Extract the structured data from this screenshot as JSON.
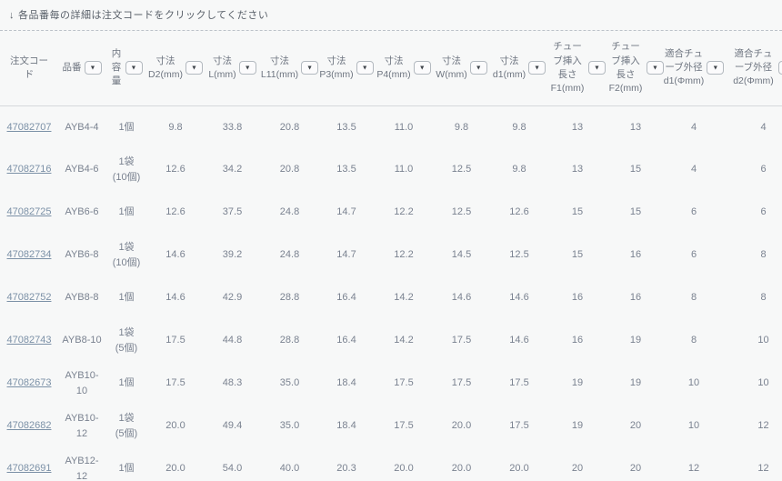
{
  "note": {
    "arrow": "↓",
    "text": "各品番毎の詳細は注文コードをクリックしてください"
  },
  "table": {
    "columns": [
      {
        "id": "order-code",
        "label": "注文コード",
        "filter": false
      },
      {
        "id": "part-number",
        "label": "品番",
        "filter": true
      },
      {
        "id": "quantity",
        "label": "内容量",
        "filter": true
      },
      {
        "id": "dim-d2",
        "label": "寸法\nD2(mm)",
        "filter": true
      },
      {
        "id": "dim-l",
        "label": "寸法\nL(mm)",
        "filter": true
      },
      {
        "id": "dim-l11",
        "label": "寸法\nL11(mm)",
        "filter": true
      },
      {
        "id": "dim-p3",
        "label": "寸法\nP3(mm)",
        "filter": true
      },
      {
        "id": "dim-p4",
        "label": "寸法\nP4(mm)",
        "filter": true
      },
      {
        "id": "dim-w",
        "label": "寸法\nW(mm)",
        "filter": true
      },
      {
        "id": "dim-d1",
        "label": "寸法\nd1(mm)",
        "filter": true
      },
      {
        "id": "tube-insert-f1",
        "label": "チューブ挿入長さ\nF1(mm)",
        "filter": true
      },
      {
        "id": "tube-insert-f2",
        "label": "チューブ挿入長さ\nF2(mm)",
        "filter": true
      },
      {
        "id": "tube-od-d1",
        "label": "適合チューブ外径\nd1(Φmm)",
        "filter": true
      },
      {
        "id": "tube-od-d2",
        "label": "適合チューブ外径\nd2(Φmm)",
        "filter": true
      }
    ],
    "rows": [
      [
        "47082707",
        "AYB4-4",
        "1個",
        "9.8",
        "33.8",
        "20.8",
        "13.5",
        "11.0",
        "9.8",
        "9.8",
        "13",
        "13",
        "4",
        "4"
      ],
      [
        "47082716",
        "AYB4-6",
        "1袋\n(10個)",
        "12.6",
        "34.2",
        "20.8",
        "13.5",
        "11.0",
        "12.5",
        "9.8",
        "13",
        "15",
        "4",
        "6"
      ],
      [
        "47082725",
        "AYB6-6",
        "1個",
        "12.6",
        "37.5",
        "24.8",
        "14.7",
        "12.2",
        "12.5",
        "12.6",
        "15",
        "15",
        "6",
        "6"
      ],
      [
        "47082734",
        "AYB6-8",
        "1袋\n(10個)",
        "14.6",
        "39.2",
        "24.8",
        "14.7",
        "12.2",
        "14.5",
        "12.5",
        "15",
        "16",
        "6",
        "8"
      ],
      [
        "47082752",
        "AYB8-8",
        "1個",
        "14.6",
        "42.9",
        "28.8",
        "16.4",
        "14.2",
        "14.6",
        "14.6",
        "16",
        "16",
        "8",
        "8"
      ],
      [
        "47082743",
        "AYB8-10",
        "1袋\n(5個)",
        "17.5",
        "44.8",
        "28.8",
        "16.4",
        "14.2",
        "17.5",
        "14.6",
        "16",
        "19",
        "8",
        "10"
      ],
      [
        "47082673",
        "AYB10-10",
        "1個",
        "17.5",
        "48.3",
        "35.0",
        "18.4",
        "17.5",
        "17.5",
        "17.5",
        "19",
        "19",
        "10",
        "10"
      ],
      [
        "47082682",
        "AYB10-12",
        "1袋\n(5個)",
        "20.0",
        "49.4",
        "35.0",
        "18.4",
        "17.5",
        "20.0",
        "17.5",
        "19",
        "20",
        "10",
        "12"
      ],
      [
        "47082691",
        "AYB12-12",
        "1個",
        "20.0",
        "54.0",
        "40.0",
        "20.3",
        "20.0",
        "20.0",
        "20.0",
        "20",
        "20",
        "12",
        "12"
      ]
    ]
  }
}
